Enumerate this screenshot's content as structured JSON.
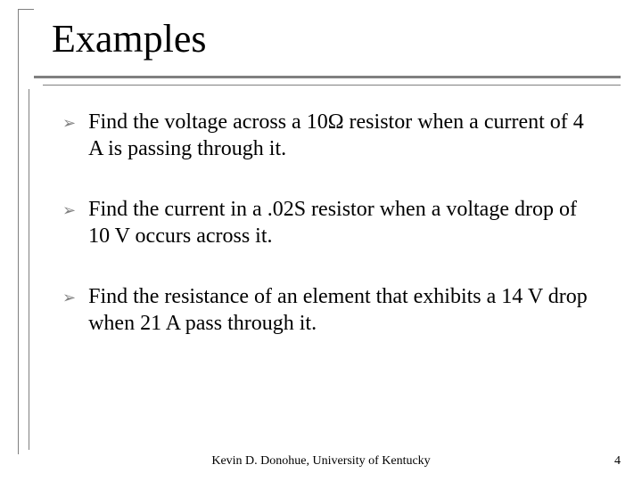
{
  "title": "Examples",
  "bullets": [
    "Find the voltage across a 10Ω resistor when a current of 4 A is passing through it.",
    "Find the current in a .02S resistor when a voltage drop of 10 V occurs across it.",
    "Find the resistance of an element that exhibits a 14 V drop when 21 A pass through it."
  ],
  "bullet_marker": "➢",
  "footer": "Kevin D. Donohue, University of Kentucky",
  "page_number": "4",
  "style": {
    "background_color": "#ffffff",
    "text_color": "#000000",
    "accent_line_color": "#808080",
    "bullet_color": "#808080",
    "title_fontsize": 44,
    "body_fontsize": 24,
    "footer_fontsize": 14,
    "font_family": "Times New Roman"
  }
}
